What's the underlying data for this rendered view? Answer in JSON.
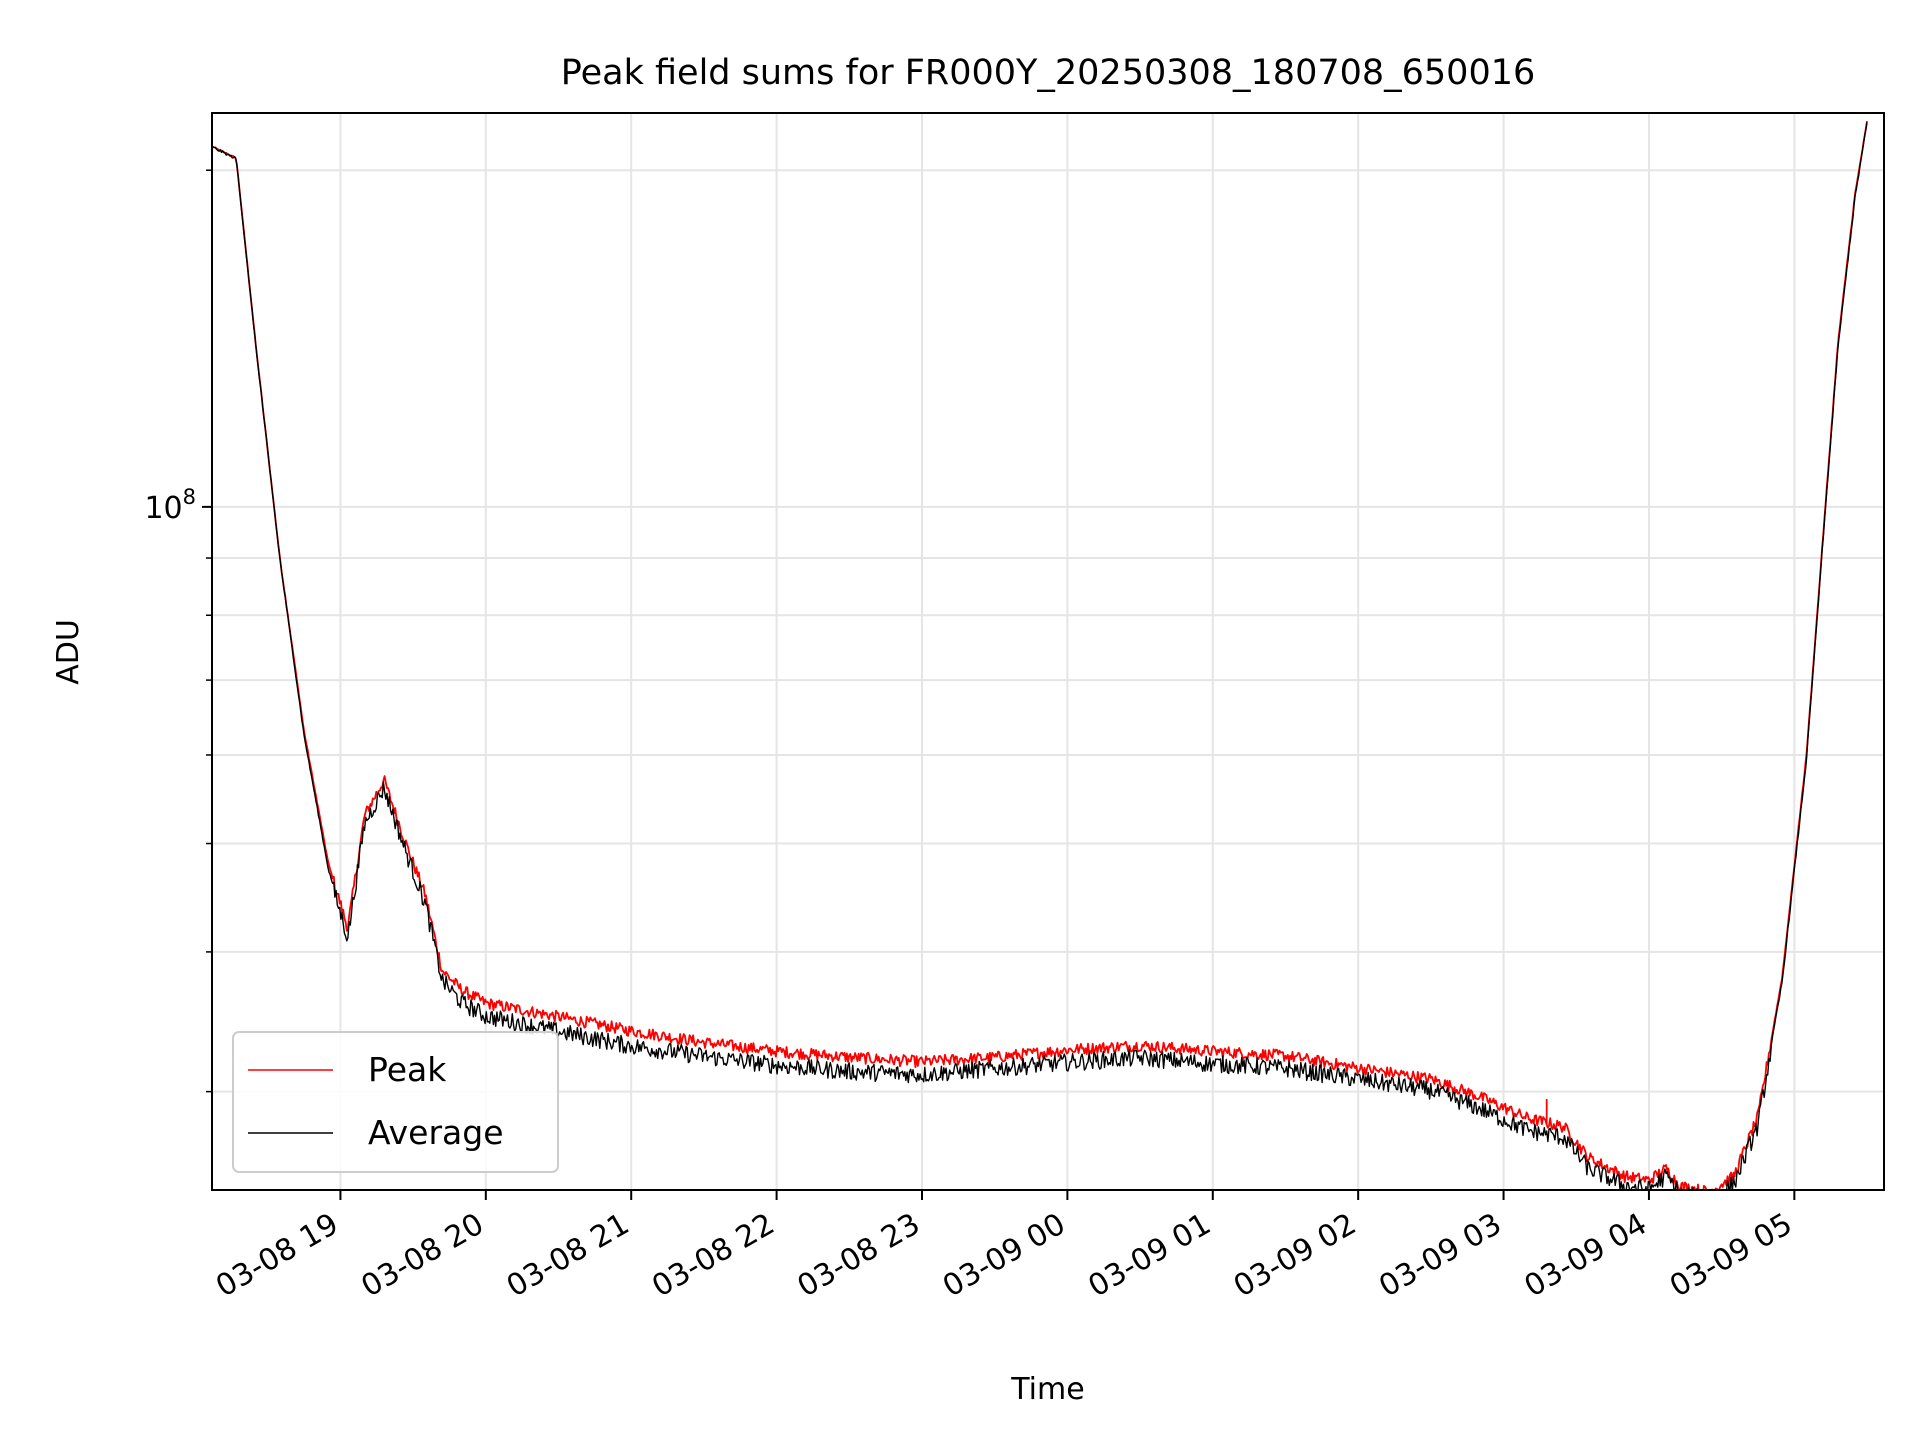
{
  "chart_data": {
    "type": "line",
    "title": "Peak field sums for FR000Y_20250308_180708_650016",
    "xlabel": "Time",
    "ylabel": "ADU",
    "y_scale": "log",
    "ylim": [
      24500000,
      225000000
    ],
    "xlim": [
      "2025-03-08 18:07",
      "2025-03-09 05:37"
    ],
    "x_ticks": [
      {
        "t": "2025-03-08 19:00",
        "label": "03-08 19"
      },
      {
        "t": "2025-03-08 20:00",
        "label": "03-08 20"
      },
      {
        "t": "2025-03-08 21:00",
        "label": "03-08 21"
      },
      {
        "t": "2025-03-08 22:00",
        "label": "03-08 22"
      },
      {
        "t": "2025-03-08 23:00",
        "label": "03-08 23"
      },
      {
        "t": "2025-03-09 00:00",
        "label": "03-09 00"
      },
      {
        "t": "2025-03-09 01:00",
        "label": "03-09 01"
      },
      {
        "t": "2025-03-09 02:00",
        "label": "03-09 02"
      },
      {
        "t": "2025-03-09 03:00",
        "label": "03-09 03"
      },
      {
        "t": "2025-03-09 04:00",
        "label": "03-09 04"
      },
      {
        "t": "2025-03-09 05:00",
        "label": "03-09 05"
      }
    ],
    "y_major_ticks": [
      {
        "value": 100000000,
        "base": "10",
        "exp": "8"
      }
    ],
    "y_minor_ticks": [
      30000000,
      40000000,
      50000000,
      60000000,
      70000000,
      80000000,
      90000000,
      200000000
    ],
    "grid": true,
    "legend_position": "lower-left",
    "series": [
      {
        "name": "Peak",
        "color": "#ff0000",
        "noise": 0.012,
        "points": [
          [
            "2025-03-08 18:07",
            210000000
          ],
          [
            "2025-03-08 18:17",
            205000000
          ],
          [
            "2025-03-08 18:25",
            140000000
          ],
          [
            "2025-03-08 18:35",
            90000000
          ],
          [
            "2025-03-08 18:45",
            63000000
          ],
          [
            "2025-03-08 18:55",
            48000000
          ],
          [
            "2025-03-08 19:03",
            42000000
          ],
          [
            "2025-03-08 19:10",
            53000000
          ],
          [
            "2025-03-08 19:18",
            57000000
          ],
          [
            "2025-03-08 19:27",
            50000000
          ],
          [
            "2025-03-08 19:35",
            45000000
          ],
          [
            "2025-03-08 19:42",
            38500000
          ],
          [
            "2025-03-08 19:50",
            37000000
          ],
          [
            "2025-03-08 20:00",
            36000000
          ],
          [
            "2025-03-08 20:30",
            35000000
          ],
          [
            "2025-03-08 21:00",
            34000000
          ],
          [
            "2025-03-08 21:30",
            33200000
          ],
          [
            "2025-03-08 22:00",
            32600000
          ],
          [
            "2025-03-08 22:30",
            32200000
          ],
          [
            "2025-03-08 23:00",
            31900000
          ],
          [
            "2025-03-08 23:30",
            32200000
          ],
          [
            "2025-03-09 00:00",
            32700000
          ],
          [
            "2025-03-09 00:30",
            33000000
          ],
          [
            "2025-03-09 01:00",
            32600000
          ],
          [
            "2025-03-09 01:30",
            32300000
          ],
          [
            "2025-03-09 02:00",
            31500000
          ],
          [
            "2025-03-09 02:30",
            30800000
          ],
          [
            "2025-03-09 02:50",
            29700000
          ],
          [
            "2025-03-09 03:10",
            28400000
          ],
          [
            "2025-03-09 03:25",
            27900000
          ],
          [
            "2025-03-09 03:35",
            26200000
          ],
          [
            "2025-03-09 03:50",
            25200000
          ],
          [
            "2025-03-09 04:00",
            25000000
          ],
          [
            "2025-03-09 04:07",
            25600000
          ],
          [
            "2025-03-09 04:13",
            24700000
          ],
          [
            "2025-03-09 04:25",
            24400000
          ],
          [
            "2025-03-09 04:35",
            25200000
          ],
          [
            "2025-03-09 04:45",
            28500000
          ],
          [
            "2025-03-09 04:55",
            38000000
          ],
          [
            "2025-03-09 05:05",
            60000000
          ],
          [
            "2025-03-09 05:12",
            95000000
          ],
          [
            "2025-03-09 05:18",
            140000000
          ],
          [
            "2025-03-09 05:25",
            190000000
          ],
          [
            "2025-03-09 05:30",
            221000000
          ]
        ],
        "spikes": [
          {
            "t": "2025-03-09 03:18",
            "value": 29500000
          }
        ]
      },
      {
        "name": "Average",
        "color": "#000000",
        "noise": 0.018,
        "points": [
          [
            "2025-03-08 18:07",
            210000000
          ],
          [
            "2025-03-08 18:17",
            205000000
          ],
          [
            "2025-03-08 18:25",
            140000000
          ],
          [
            "2025-03-08 18:35",
            90000000
          ],
          [
            "2025-03-08 18:45",
            62500000
          ],
          [
            "2025-03-08 18:55",
            47500000
          ],
          [
            "2025-03-08 19:03",
            41500000
          ],
          [
            "2025-03-08 19:10",
            52500000
          ],
          [
            "2025-03-08 19:18",
            56500000
          ],
          [
            "2025-03-08 19:27",
            49500000
          ],
          [
            "2025-03-08 19:35",
            44500000
          ],
          [
            "2025-03-08 19:42",
            38000000
          ],
          [
            "2025-03-08 19:50",
            36300000
          ],
          [
            "2025-03-08 20:00",
            35300000
          ],
          [
            "2025-03-08 20:30",
            34200000
          ],
          [
            "2025-03-08 21:00",
            33200000
          ],
          [
            "2025-03-08 21:30",
            32500000
          ],
          [
            "2025-03-08 22:00",
            31900000
          ],
          [
            "2025-03-08 22:30",
            31500000
          ],
          [
            "2025-03-08 23:00",
            31300000
          ],
          [
            "2025-03-08 23:30",
            31700000
          ],
          [
            "2025-03-09 00:00",
            32100000
          ],
          [
            "2025-03-09 00:30",
            32400000
          ],
          [
            "2025-03-09 01:00",
            32000000
          ],
          [
            "2025-03-09 01:30",
            31700000
          ],
          [
            "2025-03-09 02:00",
            31000000
          ],
          [
            "2025-03-09 02:30",
            30300000
          ],
          [
            "2025-03-09 02:50",
            29200000
          ],
          [
            "2025-03-09 03:10",
            27900000
          ],
          [
            "2025-03-09 03:25",
            27500000
          ],
          [
            "2025-03-09 03:35",
            25800000
          ],
          [
            "2025-03-09 03:50",
            24900000
          ],
          [
            "2025-03-09 04:00",
            24700000
          ],
          [
            "2025-03-09 04:07",
            25400000
          ],
          [
            "2025-03-09 04:13",
            24500000
          ],
          [
            "2025-03-09 04:25",
            24200000
          ],
          [
            "2025-03-09 04:35",
            25000000
          ],
          [
            "2025-03-09 04:45",
            28200000
          ],
          [
            "2025-03-09 04:55",
            37700000
          ],
          [
            "2025-03-09 05:05",
            59500000
          ],
          [
            "2025-03-09 05:12",
            94500000
          ],
          [
            "2025-03-09 05:18",
            139000000
          ],
          [
            "2025-03-09 05:25",
            189000000
          ],
          [
            "2025-03-09 05:30",
            221000000
          ]
        ],
        "spikes": [
          {
            "t": "2025-03-09 04:33",
            "value": 23800000
          }
        ]
      }
    ]
  }
}
